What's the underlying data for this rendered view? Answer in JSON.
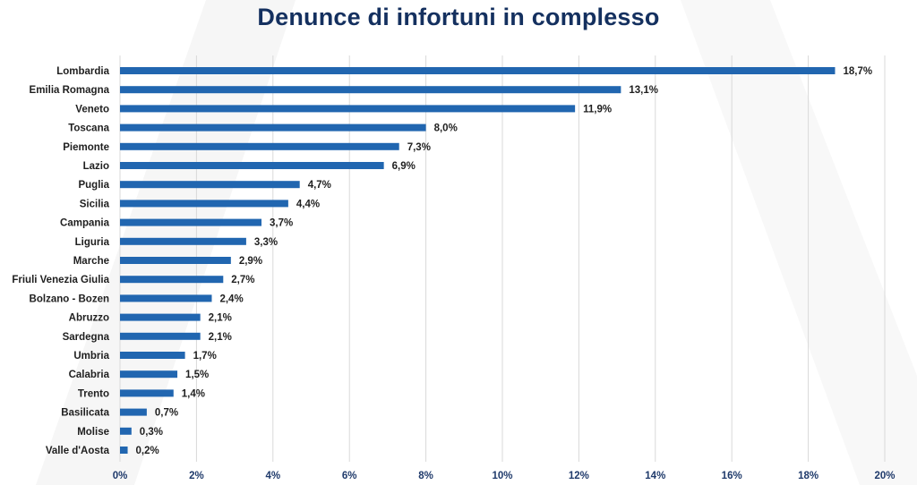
{
  "chart_data": {
    "type": "bar",
    "orientation": "horizontal",
    "title": "Denunce di infortuni in complesso",
    "categories": [
      "Lombardia",
      "Emilia Romagna",
      "Veneto",
      "Toscana",
      "Piemonte",
      "Lazio",
      "Puglia",
      "Sicilia",
      "Campania",
      "Liguria",
      "Marche",
      "Friuli Venezia Giulia",
      "Bolzano - Bozen",
      "Abruzzo",
      "Sardegna",
      "Umbria",
      "Calabria",
      "Trento",
      "Basilicata",
      "Molise",
      "Valle d'Aosta"
    ],
    "values": [
      18.7,
      13.1,
      11.9,
      8.0,
      7.3,
      6.9,
      4.7,
      4.4,
      3.7,
      3.3,
      2.9,
      2.7,
      2.4,
      2.1,
      2.1,
      1.7,
      1.5,
      1.4,
      0.7,
      0.3,
      0.2
    ],
    "value_labels": [
      "18,7%",
      "13,1%",
      "11,9%",
      "8,0%",
      "7,3%",
      "6,9%",
      "4,7%",
      "4,4%",
      "3,7%",
      "3,3%",
      "2,9%",
      "2,7%",
      "2,4%",
      "2,1%",
      "2,1%",
      "1,7%",
      "1,5%",
      "1,4%",
      "0,7%",
      "0,3%",
      "0,2%"
    ],
    "xlim": [
      0,
      20
    ],
    "xticks": [
      0,
      2,
      4,
      6,
      8,
      10,
      12,
      14,
      16,
      18,
      20
    ],
    "xtick_labels": [
      "0%",
      "2%",
      "4%",
      "6%",
      "8%",
      "10%",
      "12%",
      "14%",
      "16%",
      "18%",
      "20%"
    ],
    "grid": "vertical",
    "bar_color": "#2166b0",
    "grid_color": "#d9d9d9"
  }
}
